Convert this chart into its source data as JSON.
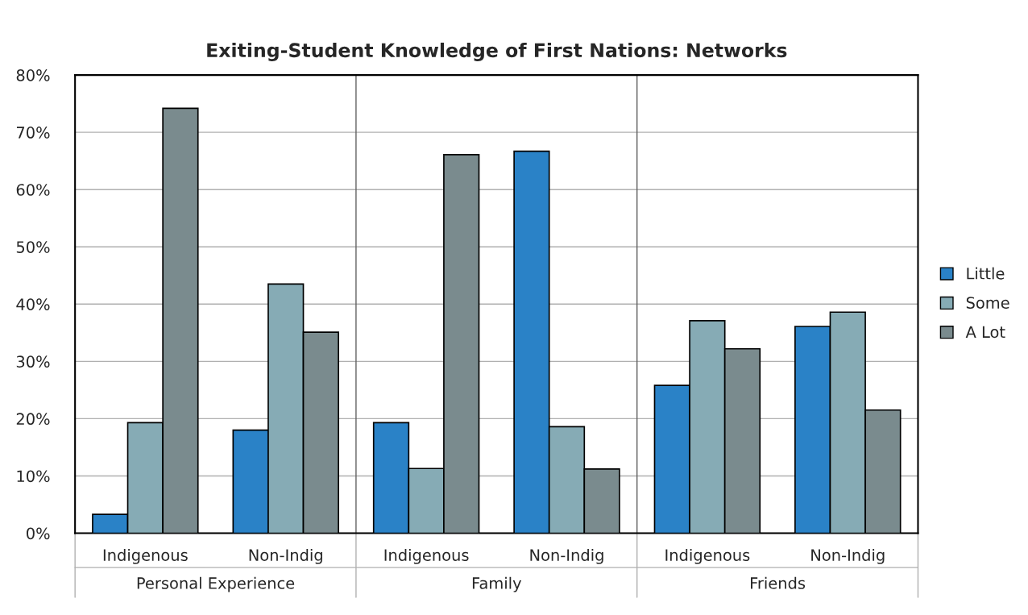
{
  "chart_data": {
    "type": "bar",
    "title": "Exiting-Student Knowledge of First Nations: Networks",
    "categories": [
      "Indigenous",
      "Non-Indig",
      "Indigenous",
      "Non-Indig",
      "Indigenous",
      "Non-Indig"
    ],
    "series": [
      {
        "name": "Little",
        "color": "#2a82c7",
        "values": [
          3.3,
          18.0,
          19.3,
          66.7,
          25.8,
          36.1
        ]
      },
      {
        "name": "Some",
        "color": "#86abb5",
        "values": [
          19.3,
          43.5,
          11.3,
          18.6,
          37.1,
          38.6
        ]
      },
      {
        "name": "A Lot",
        "color": "#7a8b8e",
        "values": [
          74.2,
          35.1,
          66.1,
          11.2,
          32.2,
          21.5
        ]
      }
    ],
    "annotations": [
      "Personal Experience",
      "Family",
      "Friends"
    ],
    "ylim": [
      0,
      80
    ],
    "yticks": [
      {
        "value": 0,
        "label": "0%"
      },
      {
        "value": 10,
        "label": "10%"
      },
      {
        "value": 20,
        "label": "20%"
      },
      {
        "value": 30,
        "label": "30%"
      },
      {
        "value": 40,
        "label": "40%"
      },
      {
        "value": 50,
        "label": "50%"
      },
      {
        "value": 60,
        "label": "60%"
      },
      {
        "value": 70,
        "label": "70%"
      },
      {
        "value": 80,
        "label": "80%"
      }
    ],
    "grid": "y",
    "legend": "right"
  }
}
